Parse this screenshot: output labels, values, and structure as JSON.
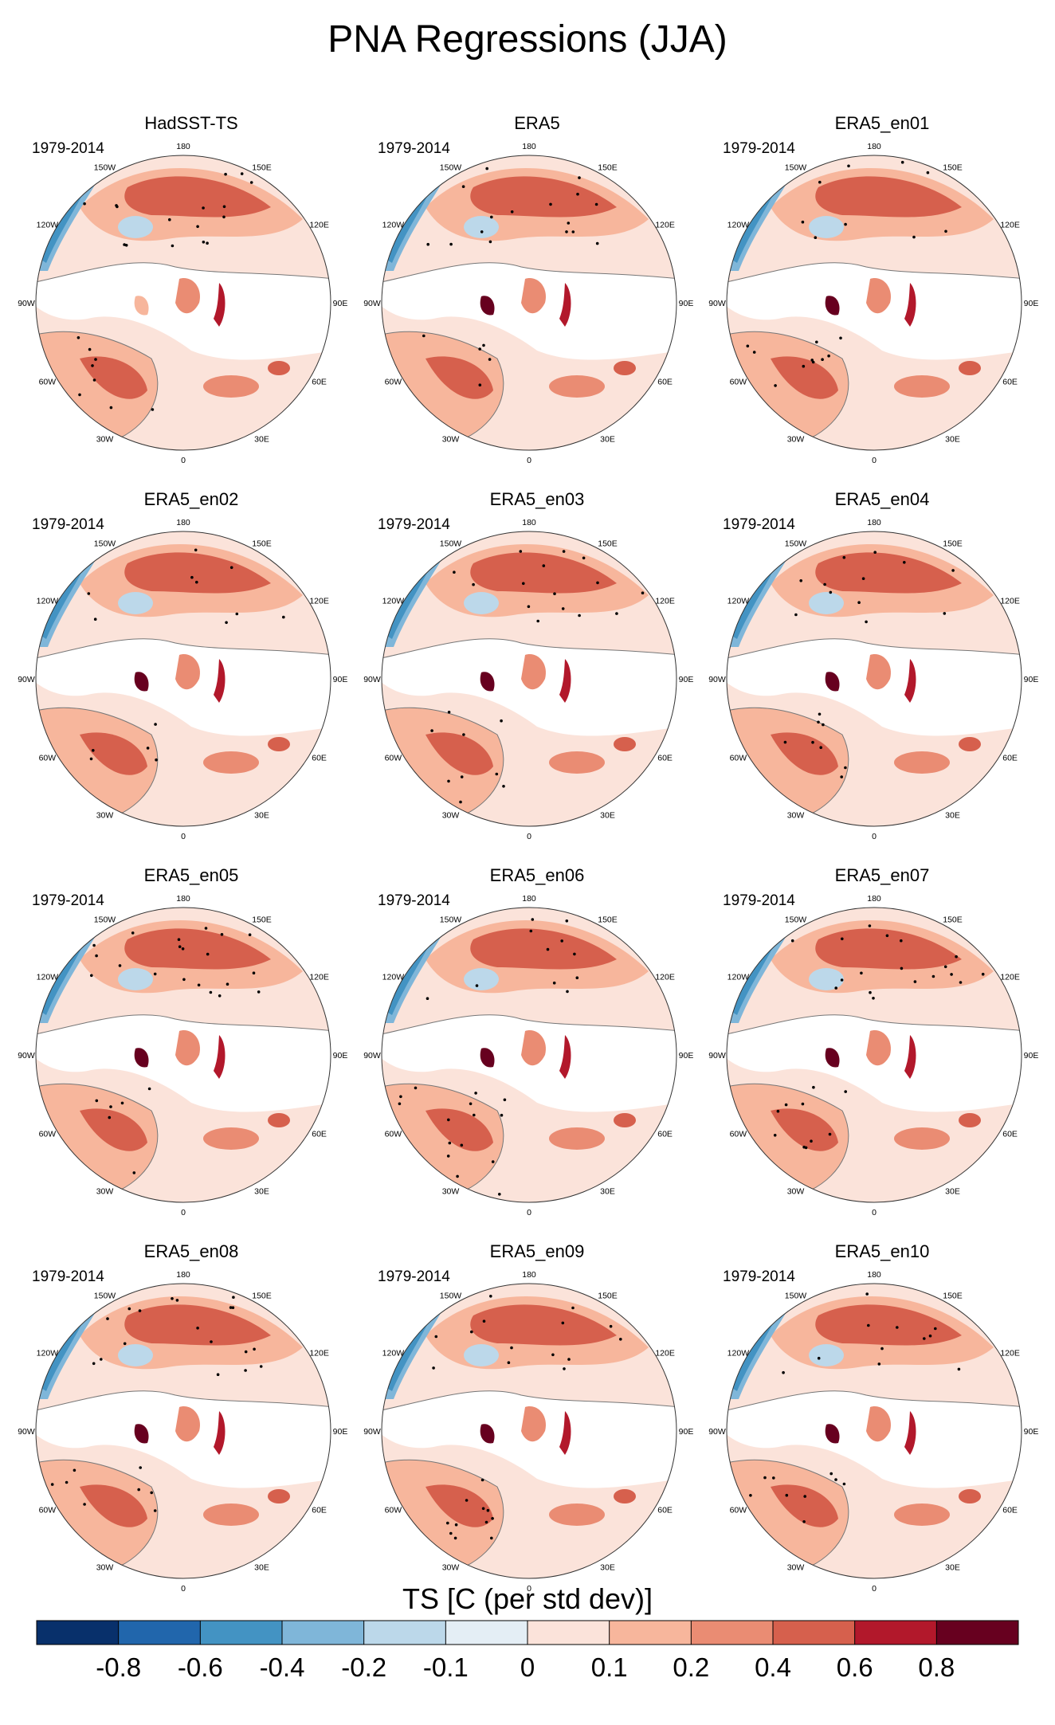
{
  "title": "PNA Regressions (JJA)",
  "panels": [
    {
      "title": "HadSST-TS",
      "period": "1979-2014"
    },
    {
      "title": "ERA5",
      "period": "1979-2014"
    },
    {
      "title": "ERA5_en01",
      "period": "1979-2014"
    },
    {
      "title": "ERA5_en02",
      "period": "1979-2014"
    },
    {
      "title": "ERA5_en03",
      "period": "1979-2014"
    },
    {
      "title": "ERA5_en04",
      "period": "1979-2014"
    },
    {
      "title": "ERA5_en05",
      "period": "1979-2014"
    },
    {
      "title": "ERA5_en06",
      "period": "1979-2014"
    },
    {
      "title": "ERA5_en07",
      "period": "1979-2014"
    },
    {
      "title": "ERA5_en08",
      "period": "1979-2014"
    },
    {
      "title": "ERA5_en09",
      "period": "1979-2014"
    },
    {
      "title": "ERA5_en10",
      "period": "1979-2014"
    }
  ],
  "longitude_labels": [
    "180",
    "150E",
    "120E",
    "90E",
    "60E",
    "30E",
    "0",
    "30W",
    "60W",
    "90W",
    "120W",
    "150W"
  ],
  "colorbar": {
    "title": "TS [C (per std dev)]",
    "labels": [
      "-0.8",
      "-0.6",
      "-0.4",
      "-0.2",
      "-0.1",
      "0",
      "0.1",
      "0.2",
      "0.4",
      "0.6",
      "0.8"
    ],
    "colors": [
      "#08306b",
      "#2166ac",
      "#4393c3",
      "#7fb6d9",
      "#bcd8ea",
      "#e4eef5",
      "#fbe3da",
      "#f7b69c",
      "#ea8c73",
      "#d6604d",
      "#b2182b",
      "#67001f"
    ]
  }
}
